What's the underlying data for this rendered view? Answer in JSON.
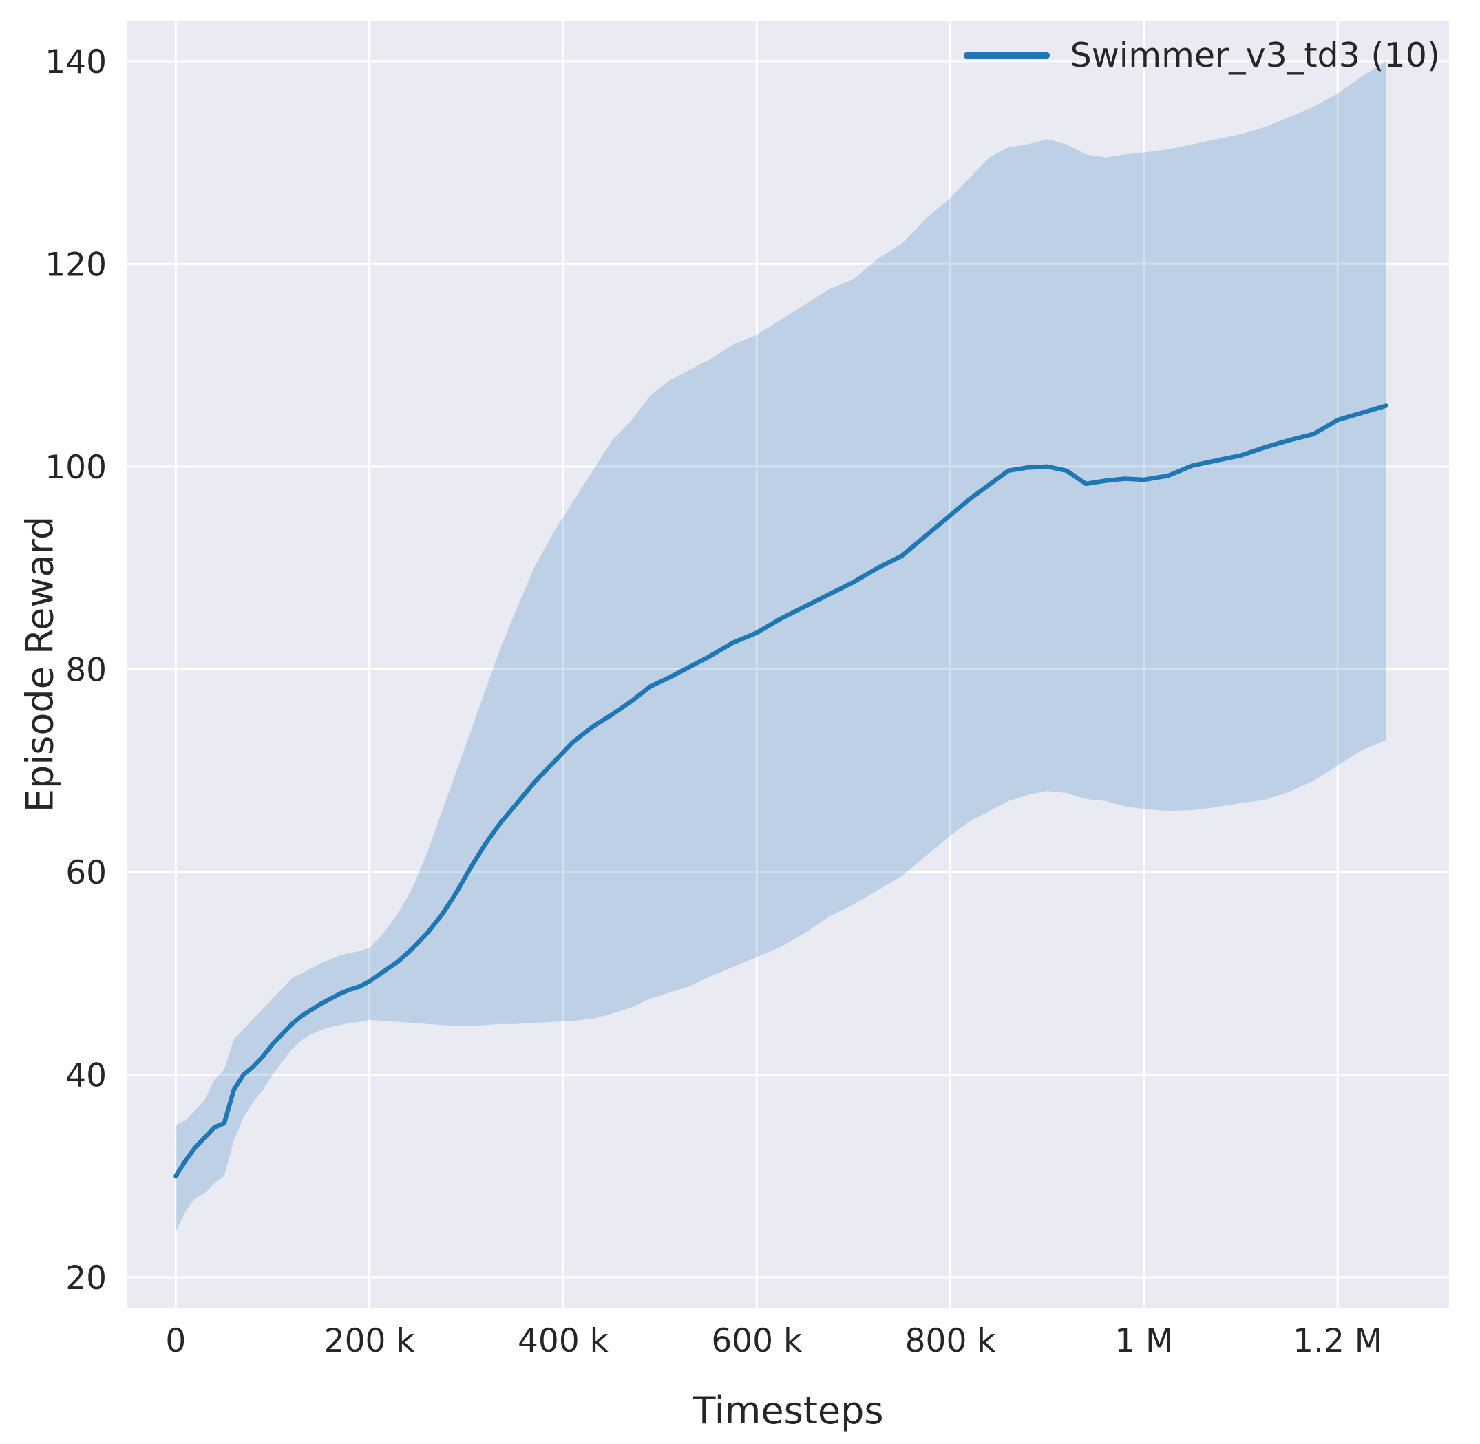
{
  "chart_data": {
    "type": "line",
    "title": "",
    "xlabel": "Timesteps",
    "ylabel": "Episode Reward",
    "legend_position": "upper right",
    "grid": true,
    "xlim": [
      -50000,
      1315000
    ],
    "ylim": [
      17,
      144
    ],
    "xticks": {
      "values": [
        0,
        200000,
        400000,
        600000,
        800000,
        1000000,
        1200000
      ],
      "labels": [
        "0",
        "200 k",
        "400 k",
        "600 k",
        "800 k",
        "1 M",
        "1.2 M"
      ]
    },
    "yticks": {
      "values": [
        20,
        40,
        60,
        80,
        100,
        120,
        140
      ],
      "labels": [
        "20",
        "40",
        "60",
        "80",
        "100",
        "120",
        "140"
      ]
    },
    "colors": {
      "line": "#1f77b4",
      "band": "#1f77b4",
      "band_opacity": 0.22,
      "plot_bg": "#eaeaf2",
      "grid": "#ffffff",
      "text": "#262626"
    },
    "series": [
      {
        "name": "Swimmer_v3_td3 (10)",
        "x": [
          0,
          10000,
          20000,
          30000,
          40000,
          50000,
          60000,
          70000,
          80000,
          90000,
          100000,
          110000,
          120000,
          130000,
          140000,
          150000,
          160000,
          170000,
          180000,
          190000,
          200000,
          215000,
          230000,
          245000,
          260000,
          275000,
          290000,
          305000,
          320000,
          335000,
          350000,
          370000,
          390000,
          410000,
          430000,
          450000,
          470000,
          490000,
          510000,
          530000,
          550000,
          575000,
          600000,
          625000,
          650000,
          675000,
          700000,
          725000,
          750000,
          775000,
          800000,
          820000,
          840000,
          860000,
          880000,
          900000,
          920000,
          940000,
          960000,
          980000,
          1000000,
          1025000,
          1050000,
          1075000,
          1100000,
          1125000,
          1150000,
          1175000,
          1200000,
          1225000,
          1250000
        ],
        "mean": [
          30,
          31.5,
          32.8,
          33.8,
          34.8,
          35.2,
          38.5,
          40,
          40.8,
          41.8,
          43,
          44,
          45,
          45.8,
          46.4,
          47,
          47.5,
          48,
          48.4,
          48.7,
          49.2,
          50.2,
          51.2,
          52.5,
          54,
          55.8,
          58,
          60.5,
          62.8,
          64.8,
          66.5,
          68.8,
          70.8,
          72.8,
          74.3,
          75.5,
          76.8,
          78.3,
          79.2,
          80.2,
          81.2,
          82.6,
          83.6,
          85,
          86.2,
          87.4,
          88.6,
          90,
          91.2,
          93.2,
          95.2,
          96.8,
          98.2,
          99.6,
          99.9,
          100,
          99.6,
          98.3,
          98.6,
          98.8,
          98.7,
          99.1,
          100.1,
          100.6,
          101.1,
          101.9,
          102.6,
          103.2,
          104.6,
          105.3,
          106
        ],
        "lower": [
          24.5,
          26.5,
          27.8,
          28.3,
          29.3,
          30,
          33.5,
          35.8,
          37.3,
          38.5,
          40,
          41.3,
          42.5,
          43.4,
          44,
          44.4,
          44.7,
          44.9,
          45.1,
          45.2,
          45.4,
          45.3,
          45.2,
          45.1,
          45,
          44.9,
          44.8,
          44.8,
          44.9,
          45,
          45,
          45.1,
          45.2,
          45.3,
          45.5,
          46,
          46.6,
          47.5,
          48.1,
          48.7,
          49.6,
          50.6,
          51.6,
          52.6,
          54,
          55.6,
          56.8,
          58.2,
          59.6,
          61.6,
          63.6,
          65,
          66,
          67,
          67.6,
          68,
          67.8,
          67.2,
          67,
          66.5,
          66.2,
          66,
          66.1,
          66.4,
          66.8,
          67.1,
          67.9,
          69,
          70.5,
          72,
          73
        ],
        "upper": [
          35,
          35.5,
          36.5,
          37.5,
          39.5,
          40.5,
          43.5,
          44.5,
          45.5,
          46.5,
          47.5,
          48.5,
          49.5,
          50,
          50.5,
          51,
          51.4,
          51.8,
          52,
          52.2,
          52.5,
          54,
          56,
          58.5,
          62,
          66,
          70,
          74,
          78,
          82,
          85.5,
          90,
          93.5,
          96.5,
          99.5,
          102.5,
          104.5,
          107,
          108.5,
          109.5,
          110.5,
          112,
          113,
          114.5,
          116,
          117.5,
          118.5,
          120.5,
          122,
          124.5,
          126.5,
          128.5,
          130.5,
          131.5,
          131.8,
          132.3,
          131.8,
          130.8,
          130.5,
          130.8,
          131,
          131.3,
          131.8,
          132.3,
          132.8,
          133.5,
          134.5,
          135.5,
          136.8,
          138.5,
          140
        ]
      }
    ]
  }
}
